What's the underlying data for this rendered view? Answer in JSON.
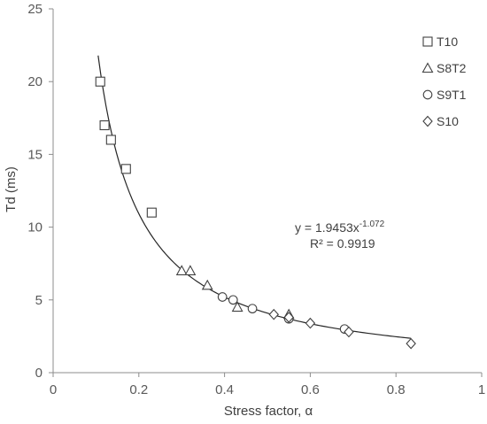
{
  "chart_data": {
    "type": "scatter",
    "xlabel": "Stress factor, α",
    "ylabel": "Td (ms)",
    "xlim": [
      0,
      1
    ],
    "ylim": [
      0,
      25
    ],
    "x_ticks": [
      "0",
      "0.2",
      "0.4",
      "0.6",
      "0.8",
      "1"
    ],
    "y_ticks": [
      "0",
      "5",
      "10",
      "15",
      "20",
      "25"
    ],
    "grid": false,
    "legend_position": "right",
    "series": [
      {
        "name": "T10",
        "marker": "square",
        "x": [
          0.11,
          0.12,
          0.135,
          0.17,
          0.23
        ],
        "y": [
          20.0,
          17.0,
          16.0,
          14.0,
          11.0
        ]
      },
      {
        "name": "S8T2",
        "marker": "triangle",
        "x": [
          0.3,
          0.32,
          0.36,
          0.43,
          0.55
        ],
        "y": [
          7.0,
          7.0,
          6.0,
          4.5,
          4.0
        ]
      },
      {
        "name": "S9T1",
        "marker": "circle",
        "x": [
          0.395,
          0.42,
          0.465,
          0.55,
          0.68
        ],
        "y": [
          5.2,
          5.0,
          4.4,
          3.7,
          3.0
        ]
      },
      {
        "name": "S10",
        "marker": "diamond",
        "x": [
          0.515,
          0.55,
          0.6,
          0.69,
          0.835
        ],
        "y": [
          4.0,
          3.8,
          3.4,
          2.8,
          2.0
        ]
      }
    ],
    "trendline": {
      "equation_label": "y = 1.9453x",
      "exponent_label": "-1.072",
      "r2_label": "R² = 0.9919",
      "a": 1.9453,
      "b": -1.072,
      "x_range": [
        0.105,
        0.835
      ]
    },
    "colors": {
      "axis": "#8c8c8c",
      "marker": "#404040",
      "curve": "#262626"
    }
  }
}
